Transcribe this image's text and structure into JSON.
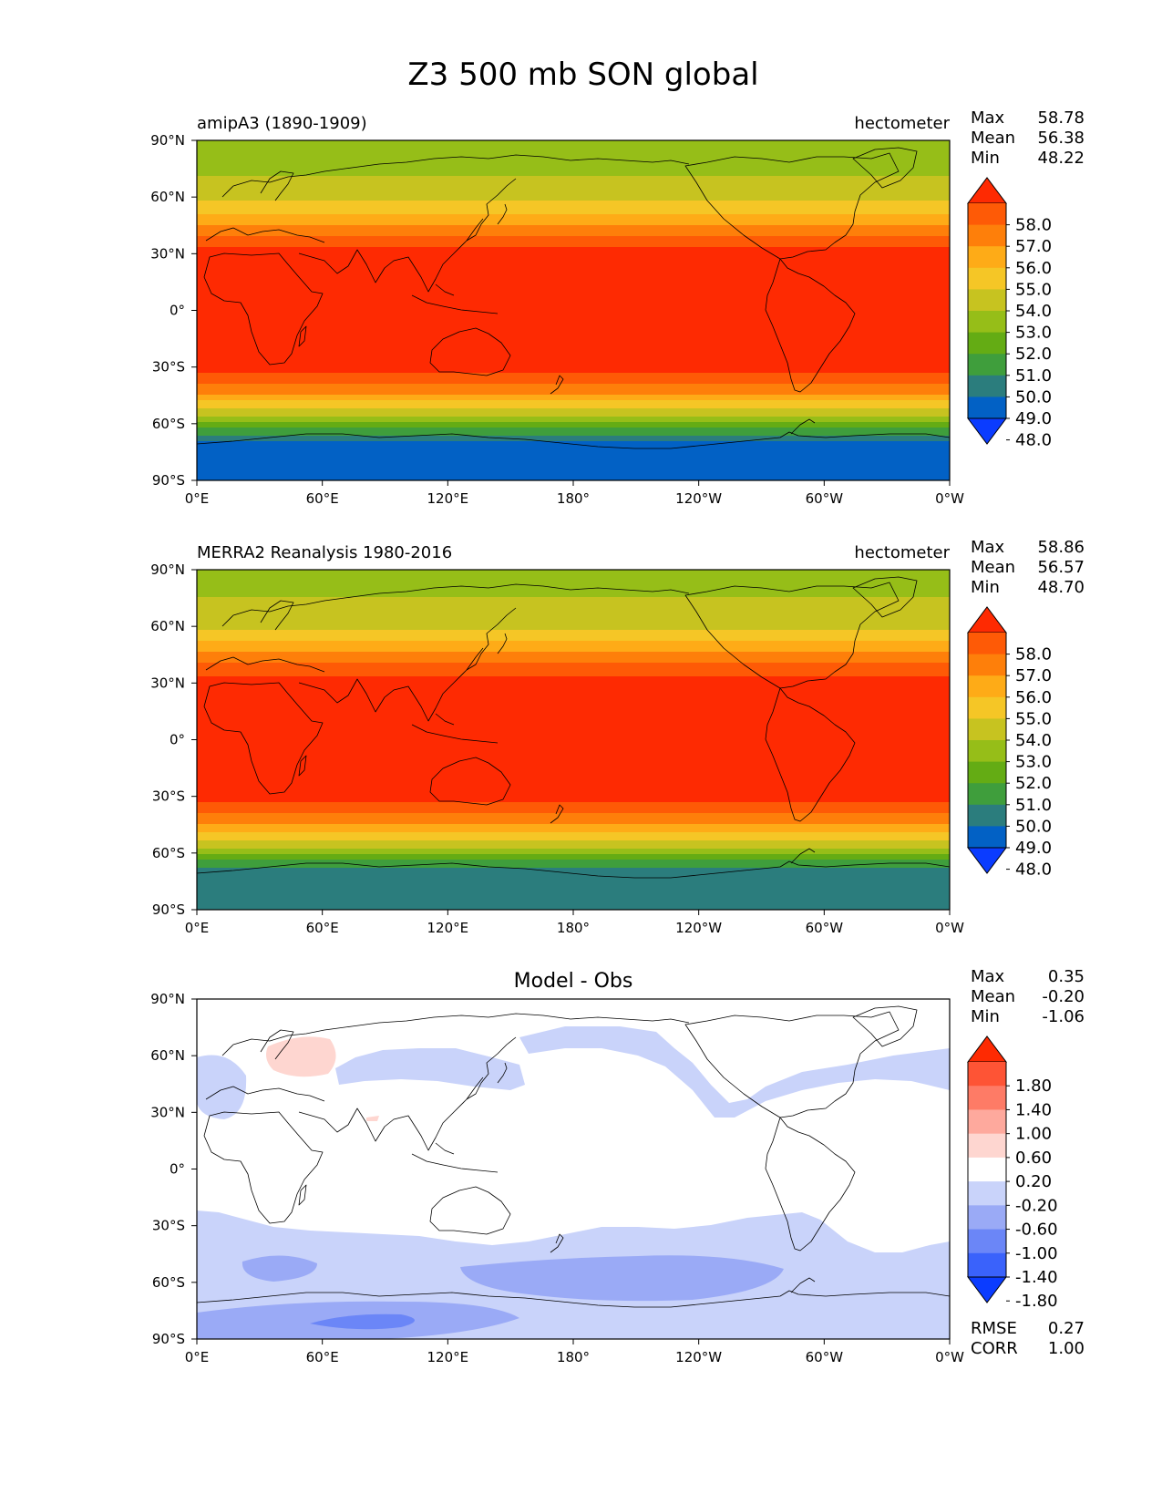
{
  "figure_title": "Z3 500 mb SON global",
  "stat_labels": {
    "max": "Max",
    "mean": "Mean",
    "min": "Min",
    "rmse": "RMSE",
    "corr": "CORR"
  },
  "colors": {
    "abs_levels": [
      "#0b3cff",
      "#0261c5",
      "#2b7d7d",
      "#3f9e3c",
      "#64ac14",
      "#96be18",
      "#c7c320",
      "#f5c626",
      "#feab17",
      "#fe7f0a",
      "#fe5a06",
      "#fe2a02"
    ],
    "diff_levels": [
      "#0b3cff",
      "#3a62fb",
      "#6b86f7",
      "#9aaaf6",
      "#c9d3fa",
      "#ffffff",
      "#fed6d0",
      "#fea99d",
      "#fe7b66",
      "#fe5435",
      "#fe2a02"
    ],
    "land_outline": "#000000"
  },
  "chart_data": [
    {
      "type": "heatmap",
      "title": "amipA3 (1890-1909)",
      "units": "hectometer",
      "stats": {
        "max": "58.78",
        "mean": "56.38",
        "min": "48.22"
      },
      "x_ticks": [
        "0°E",
        "60°E",
        "120°E",
        "180°",
        "120°W",
        "60°W",
        "0°W"
      ],
      "y_ticks": [
        "90°N",
        "60°N",
        "30°N",
        "0°",
        "30°S",
        "60°S",
        "90°S"
      ],
      "x_range": [
        0,
        360
      ],
      "y_range": [
        -90,
        90
      ],
      "colorbar_levels": [
        "58.0",
        "57.0",
        "56.0",
        "55.0",
        "54.0",
        "53.0",
        "52.0",
        "51.0",
        "50.0",
        "49.0",
        "48.0"
      ],
      "zonal_profile": {
        "lat": [
          90,
          75,
          60,
          45,
          35,
          30,
          15,
          0,
          -15,
          -30,
          -35,
          -45,
          -55,
          -60,
          -65,
          -70,
          -90
        ],
        "value": [
          52.3,
          52.8,
          53.6,
          56.1,
          57.8,
          58.3,
          58.6,
          58.7,
          58.6,
          58.3,
          57.7,
          55.8,
          53.2,
          51.7,
          50.4,
          48.9,
          48.4
        ]
      }
    },
    {
      "type": "heatmap",
      "title": "MERRA2 Reanalysis 1980-2016",
      "units": "hectometer",
      "stats": {
        "max": "58.86",
        "mean": "56.57",
        "min": "48.70"
      },
      "x_ticks": [
        "0°E",
        "60°E",
        "120°E",
        "180°",
        "120°W",
        "60°W",
        "0°W"
      ],
      "y_ticks": [
        "90°N",
        "60°N",
        "30°N",
        "0°",
        "30°S",
        "60°S",
        "90°S"
      ],
      "x_range": [
        0,
        360
      ],
      "y_range": [
        -90,
        90
      ],
      "colorbar_levels": [
        "58.0",
        "57.0",
        "56.0",
        "55.0",
        "54.0",
        "53.0",
        "52.0",
        "51.0",
        "50.0",
        "49.0",
        "48.0"
      ],
      "zonal_profile": {
        "lat": [
          90,
          75,
          60,
          45,
          35,
          30,
          15,
          0,
          -15,
          -30,
          -35,
          -45,
          -55,
          -60,
          -65,
          -70,
          -90
        ],
        "value": [
          52.5,
          53.0,
          53.8,
          56.2,
          57.9,
          58.4,
          58.7,
          58.8,
          58.7,
          58.4,
          57.8,
          56.0,
          53.6,
          52.1,
          50.7,
          49.4,
          49.2
        ]
      }
    },
    {
      "type": "heatmap",
      "title": "Model - Obs",
      "units": "",
      "stats": {
        "max": "0.35",
        "mean": "-0.20",
        "min": "-1.06",
        "rmse": "0.27",
        "corr": "1.00"
      },
      "x_ticks": [
        "0°E",
        "60°E",
        "120°E",
        "180°",
        "120°W",
        "60°W",
        "0°W"
      ],
      "y_ticks": [
        "90°N",
        "60°N",
        "30°N",
        "0°",
        "30°S",
        "60°S",
        "90°S"
      ],
      "x_range": [
        0,
        360
      ],
      "y_range": [
        -90,
        90
      ],
      "colorbar_levels": [
        "1.80",
        "1.40",
        "1.00",
        "0.60",
        "0.20",
        "-0.20",
        "-0.60",
        "-1.00",
        "-1.40",
        "-1.80"
      ]
    }
  ]
}
